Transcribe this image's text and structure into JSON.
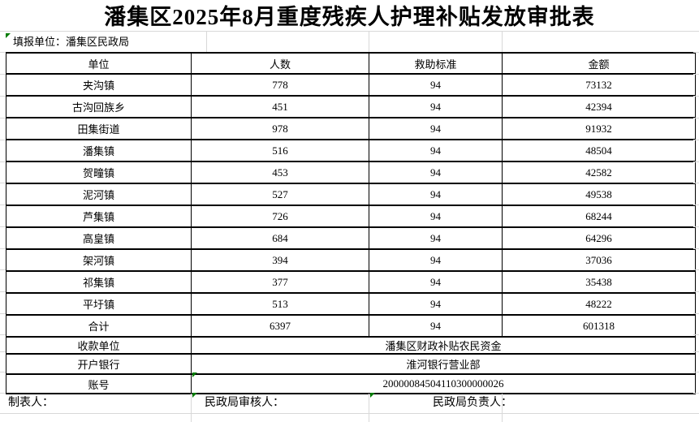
{
  "title": "潘集区2025年8月重度残疾人护理补贴发放审批表",
  "reporting_unit": "填报单位：潘集区民政局",
  "table": {
    "headers": [
      "单位",
      "人数",
      "救助标准",
      "金额"
    ],
    "rows": [
      [
        "夹沟镇",
        "778",
        "94",
        "73132"
      ],
      [
        "古沟回族乡",
        "451",
        "94",
        "42394"
      ],
      [
        "田集街道",
        "978",
        "94",
        "91932"
      ],
      [
        "潘集镇",
        "516",
        "94",
        "48504"
      ],
      [
        "贺疃镇",
        "453",
        "94",
        "42582"
      ],
      [
        "泥河镇",
        "527",
        "94",
        "49538"
      ],
      [
        "芦集镇",
        "726",
        "94",
        "68244"
      ],
      [
        "高皇镇",
        "684",
        "94",
        "64296"
      ],
      [
        "架河镇",
        "394",
        "94",
        "37036"
      ],
      [
        "祁集镇",
        "377",
        "94",
        "35438"
      ],
      [
        "平圩镇",
        "513",
        "94",
        "48222"
      ],
      [
        "合计",
        "6397",
        "94",
        "601318"
      ]
    ],
    "payee_label": "收款单位",
    "payee_value": "潘集区财政补贴农民资金",
    "bank_label": "开户银行",
    "bank_value": "淮河银行营业部",
    "account_label": "账号",
    "account_value": "20000084504110300000026"
  },
  "footer": {
    "preparer_label": "制表人：",
    "reviewer_label": "民政局审核人：",
    "responsible_label": "民政局负责人："
  },
  "colors": {
    "border": "#000000",
    "gridline": "#d8d8d8",
    "flag_green": "#007b00"
  }
}
